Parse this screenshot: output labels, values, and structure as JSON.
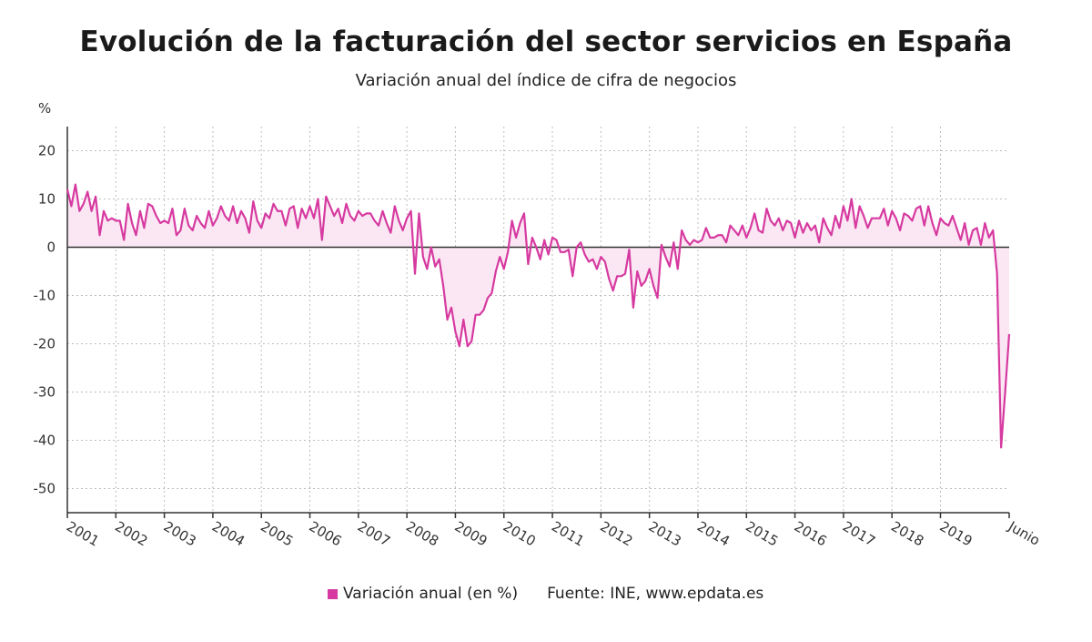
{
  "title": "Evolución de la facturación del sector servicios en España",
  "subtitle": "Variación anual del índice de cifra de negocios",
  "colors": {
    "series": "#d63aa0",
    "area": "#fbe7f3",
    "zero_line": "#333333",
    "grid": "#bdbdbd"
  },
  "legend": {
    "series_label": "Variación anual (en %)",
    "source": "Fuente: INE, www.epdata.es"
  },
  "chart_data": {
    "type": "line",
    "ylabel": "%",
    "ylim": [
      -55,
      25
    ],
    "yticks": [
      20,
      10,
      0,
      -10,
      -20,
      -30,
      -40,
      -50
    ],
    "x_start": "2001-01",
    "x_end": "2020-06",
    "x_tick_labels": [
      "2001",
      "2002",
      "2003",
      "2004",
      "2005",
      "2006",
      "2007",
      "2008",
      "2009",
      "2010",
      "2011",
      "2012",
      "2013",
      "2014",
      "2015",
      "2016",
      "2017",
      "2018",
      "2019",
      "Junio"
    ],
    "grid": true,
    "area_fill": true,
    "legend_position": "bottom",
    "series": [
      {
        "name": "Variación anual (en %)",
        "frequency": "monthly",
        "values": [
          12,
          8.5,
          13,
          7.5,
          9,
          11.5,
          7.5,
          10.5,
          2.5,
          7.5,
          5.5,
          6,
          5.5,
          5.5,
          1.5,
          9,
          5,
          2.5,
          7.5,
          4,
          9,
          8.5,
          6.5,
          5,
          5.5,
          5,
          8,
          2.5,
          3.5,
          8,
          4.5,
          3.5,
          6.5,
          5,
          4,
          7.5,
          4.5,
          6,
          8.5,
          6.5,
          5.5,
          8.5,
          5,
          7.5,
          6,
          3,
          9.5,
          5.5,
          4,
          7,
          6,
          9,
          7.5,
          7.5,
          4.5,
          8,
          8.5,
          4,
          8,
          6,
          8.5,
          6,
          10,
          1.5,
          10.5,
          8.5,
          6.5,
          8,
          5,
          9,
          6.5,
          5.5,
          7.5,
          6.5,
          7,
          7,
          5.5,
          4.5,
          7.5,
          5,
          3,
          8.5,
          5.5,
          3.5,
          6,
          7.5,
          -5.5,
          7,
          -2,
          -4.5,
          0,
          -4,
          -2.5,
          -8,
          -15,
          -12.5,
          -17.5,
          -20.5,
          -15,
          -20.5,
          -19.5,
          -14,
          -14,
          -13,
          -10.5,
          -9.5,
          -5,
          -2,
          -4.5,
          -1,
          5.5,
          2,
          5,
          7,
          -3.5,
          2,
          0,
          -2.5,
          1.5,
          -1.5,
          2,
          1.5,
          -1,
          -1,
          -0.5,
          -6,
          0,
          1,
          -1.5,
          -3,
          -2.5,
          -4.5,
          -2,
          -3,
          -6.5,
          -9,
          -6,
          -6,
          -5.5,
          -0.5,
          -12.5,
          -5,
          -8,
          -7,
          -4.5,
          -8,
          -10.5,
          0.5,
          -2,
          -4,
          1,
          -4.5,
          3.5,
          1.5,
          0.5,
          1.5,
          1,
          1.5,
          4,
          2,
          2,
          2.5,
          2.5,
          1,
          4.5,
          3.5,
          2.5,
          4.5,
          2,
          4,
          7,
          3.5,
          3,
          8,
          5.5,
          4.5,
          6,
          3.5,
          5.5,
          5,
          2,
          5.5,
          3,
          5,
          3.5,
          4.5,
          1,
          6,
          4,
          2.5,
          6.5,
          4,
          8.5,
          5.5,
          10,
          4,
          8.5,
          6.5,
          4,
          6,
          6,
          6,
          8,
          4.5,
          7.5,
          6,
          3.5,
          7,
          6.5,
          5.5,
          8,
          8.5,
          4.5,
          8.5,
          5,
          2.5,
          6,
          5,
          4.5,
          6.5,
          4,
          1.5,
          5,
          0.5,
          3.5,
          4,
          0.5,
          5,
          2,
          3.5,
          -5.5,
          -41.5,
          -30,
          -18
        ]
      }
    ]
  }
}
